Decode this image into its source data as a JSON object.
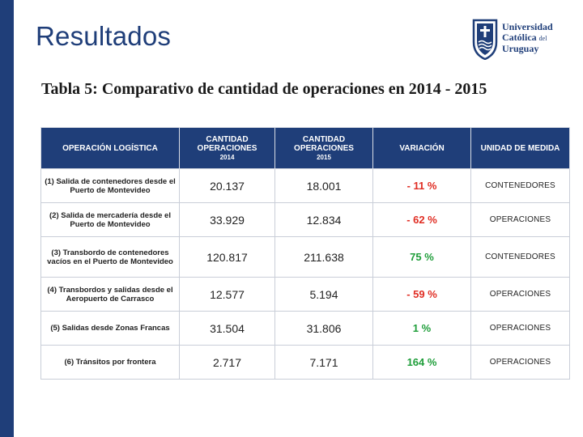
{
  "slide": {
    "title": "Resultados",
    "caption": "Tabla 5: Comparativo de cantidad de operaciones en 2014 - 2015"
  },
  "logo": {
    "line1": "Universidad",
    "line2": "Católica",
    "line2_small": "del",
    "line3": "Uruguay"
  },
  "colors": {
    "brand": "#1f3e79",
    "negative": "#e02e24",
    "positive": "#1f9e3a"
  },
  "table": {
    "headers": {
      "operation": "OPERACIÓN LOGÍSTICA",
      "qty_2014_a": "CANTIDAD",
      "qty_2014_b": "OPERACIONES",
      "qty_2014_year": "2014",
      "qty_2015_a": "CANTIDAD",
      "qty_2015_b": "OPERACIONES",
      "qty_2015_year": "2015",
      "variation": "VARIACIÓN",
      "unit": "UNIDAD DE MEDIDA"
    },
    "rows": [
      {
        "operation": "(1) Salida de contenedores desde el Puerto de Montevideo",
        "y2014": "20.137",
        "y2015": "18.001",
        "variation": "- 11 %",
        "unit": "CONTENEDORES"
      },
      {
        "operation": "(2) Salida de mercadería desde el Puerto de Montevideo",
        "y2014": "33.929",
        "y2015": "12.834",
        "variation": "- 62 %",
        "unit": "OPERACIONES"
      },
      {
        "operation": "(3) Transbordo de contenedores vacíos en el Puerto de Montevideo",
        "y2014": "120.817",
        "y2015": "211.638",
        "variation": "75 %",
        "unit": "CONTENEDORES"
      },
      {
        "operation": "(4) Transbordos y salidas desde el Aeropuerto de Carrasco",
        "y2014": "12.577",
        "y2015": "5.194",
        "variation": "- 59 %",
        "unit": "OPERACIONES"
      },
      {
        "operation": "(5) Salidas desde Zonas Francas",
        "y2014": "31.504",
        "y2015": "31.806",
        "variation": "1 %",
        "unit": "OPERACIONES"
      },
      {
        "operation": "(6) Tránsitos por frontera",
        "y2014": "2.717",
        "y2015": "7.171",
        "variation": "164 %",
        "unit": "OPERACIONES"
      }
    ]
  }
}
